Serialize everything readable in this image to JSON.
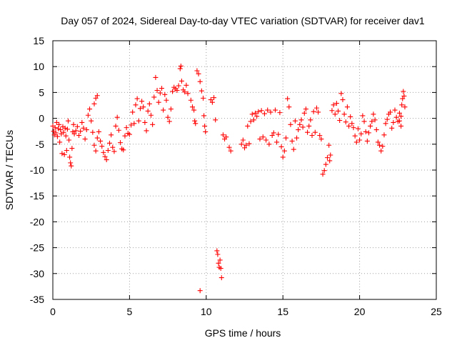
{
  "chart_data": {
    "type": "scatter",
    "title": "Day 057 of 2024, Sidereal Day-to-day VTEC variation (SDTVAR) for receiver dav1",
    "xlabel": "GPS time / hours",
    "ylabel": "SDTVAR / TECUs",
    "xlim": [
      0,
      25
    ],
    "ylim": [
      -35,
      15
    ],
    "xticks": [
      0,
      5,
      10,
      15,
      20,
      25
    ],
    "yticks": [
      15,
      10,
      5,
      0,
      -5,
      -10,
      -15,
      -20,
      -25,
      -30,
      -35
    ],
    "grid": true,
    "marker": "plus",
    "color": "#ff0000",
    "series": [
      {
        "name": "dav1",
        "points": [
          [
            0.0,
            -1.5
          ],
          [
            0.05,
            -2.5
          ],
          [
            0.1,
            -3.2
          ],
          [
            0.15,
            -1.8
          ],
          [
            0.2,
            -2.8
          ],
          [
            0.25,
            -0.8
          ],
          [
            0.3,
            -3.5
          ],
          [
            0.35,
            -2.0
          ],
          [
            0.4,
            -1.2
          ],
          [
            0.45,
            -4.6
          ],
          [
            0.5,
            -2.2
          ],
          [
            0.55,
            -3.0
          ],
          [
            0.6,
            -6.8
          ],
          [
            0.65,
            -1.6
          ],
          [
            0.7,
            -2.7
          ],
          [
            0.75,
            -7.0
          ],
          [
            0.8,
            -1.9
          ],
          [
            0.85,
            -3.4
          ],
          [
            0.9,
            -6.2
          ],
          [
            0.95,
            -2.1
          ],
          [
            1.0,
            -0.5
          ],
          [
            1.05,
            -4.2
          ],
          [
            1.1,
            -7.5
          ],
          [
            1.15,
            -8.6
          ],
          [
            1.2,
            -9.2
          ],
          [
            1.25,
            -5.8
          ],
          [
            1.3,
            -2.6
          ],
          [
            1.35,
            -1.2
          ],
          [
            1.4,
            -3.0
          ],
          [
            1.5,
            -2.4
          ],
          [
            1.6,
            -1.6
          ],
          [
            1.7,
            -3.3
          ],
          [
            1.8,
            -2.5
          ],
          [
            1.9,
            -0.8
          ],
          [
            2.0,
            -1.9
          ],
          [
            2.1,
            -4.0
          ],
          [
            2.2,
            -2.2
          ],
          [
            2.3,
            0.6
          ],
          [
            2.4,
            1.8
          ],
          [
            2.5,
            -0.5
          ],
          [
            2.6,
            -2.7
          ],
          [
            2.7,
            2.8
          ],
          [
            2.8,
            3.9
          ],
          [
            2.9,
            4.4
          ],
          [
            2.7,
            -5.2
          ],
          [
            2.8,
            -6.3
          ],
          [
            2.9,
            -3.8
          ],
          [
            3.0,
            -2.6
          ],
          [
            3.1,
            -4.4
          ],
          [
            3.2,
            -5.4
          ],
          [
            3.3,
            -6.6
          ],
          [
            3.4,
            -7.4
          ],
          [
            3.5,
            -8.0
          ],
          [
            3.6,
            -6.2
          ],
          [
            3.7,
            -4.8
          ],
          [
            3.8,
            -3.2
          ],
          [
            3.9,
            -5.6
          ],
          [
            4.0,
            -6.4
          ],
          [
            4.1,
            -1.5
          ],
          [
            4.2,
            0.2
          ],
          [
            4.3,
            -2.3
          ],
          [
            4.4,
            -4.7
          ],
          [
            4.5,
            -5.9
          ],
          [
            4.6,
            -6.1
          ],
          [
            4.7,
            -3.4
          ],
          [
            4.8,
            -1.8
          ],
          [
            4.9,
            -2.9
          ],
          [
            5.0,
            -3.1
          ],
          [
            5.1,
            -1.3
          ],
          [
            5.2,
            1.2
          ],
          [
            5.3,
            -1.0
          ],
          [
            5.4,
            2.6
          ],
          [
            5.5,
            3.8
          ],
          [
            5.6,
            -0.5
          ],
          [
            5.7,
            1.9
          ],
          [
            5.8,
            3.3
          ],
          [
            5.9,
            2.2
          ],
          [
            6.0,
            -0.8
          ],
          [
            6.1,
            -2.4
          ],
          [
            6.2,
            1.4
          ],
          [
            6.3,
            2.8
          ],
          [
            6.4,
            0.6
          ],
          [
            6.5,
            -1.2
          ],
          [
            6.6,
            4.1
          ],
          [
            6.7,
            7.9
          ],
          [
            6.8,
            5.4
          ],
          [
            6.9,
            3.1
          ],
          [
            7.0,
            4.9
          ],
          [
            7.1,
            5.8
          ],
          [
            7.2,
            1.6
          ],
          [
            7.3,
            4.6
          ],
          [
            7.4,
            3.5
          ],
          [
            7.5,
            0.2
          ],
          [
            7.6,
            -0.6
          ],
          [
            7.7,
            1.8
          ],
          [
            7.8,
            5.2
          ],
          [
            7.9,
            6.0
          ],
          [
            8.0,
            5.7
          ],
          [
            8.1,
            5.4
          ],
          [
            8.2,
            6.3
          ],
          [
            8.3,
            9.6
          ],
          [
            8.35,
            10.1
          ],
          [
            8.4,
            7.2
          ],
          [
            8.5,
            5.5
          ],
          [
            8.6,
            5.1
          ],
          [
            8.7,
            6.4
          ],
          [
            8.8,
            4.8
          ],
          [
            9.0,
            3.5
          ],
          [
            9.1,
            2.2
          ],
          [
            9.2,
            1.6
          ],
          [
            9.25,
            -0.5
          ],
          [
            9.3,
            -1.0
          ],
          [
            9.4,
            9.2
          ],
          [
            9.5,
            8.6
          ],
          [
            9.6,
            7.1
          ],
          [
            9.7,
            5.3
          ],
          [
            9.8,
            3.9
          ],
          [
            9.85,
            0.5
          ],
          [
            9.9,
            -1.5
          ],
          [
            9.95,
            -2.6
          ],
          [
            9.6,
            -33.3
          ],
          [
            10.3,
            3.6
          ],
          [
            10.4,
            3.1
          ],
          [
            10.5,
            4.0
          ],
          [
            10.6,
            -0.3
          ],
          [
            10.7,
            -25.6
          ],
          [
            10.75,
            -26.3
          ],
          [
            10.8,
            -28.0
          ],
          [
            10.85,
            -28.8
          ],
          [
            10.9,
            -27.4
          ],
          [
            10.95,
            -29.0
          ],
          [
            11.0,
            -30.8
          ],
          [
            11.1,
            -3.2
          ],
          [
            11.2,
            -4.0
          ],
          [
            11.3,
            -3.6
          ],
          [
            11.5,
            -5.6
          ],
          [
            11.6,
            -6.3
          ],
          [
            12.3,
            -5.0
          ],
          [
            12.4,
            -4.2
          ],
          [
            12.5,
            -5.7
          ],
          [
            12.6,
            -5.2
          ],
          [
            12.7,
            -1.5
          ],
          [
            12.8,
            -4.9
          ],
          [
            12.9,
            -0.6
          ],
          [
            13.0,
            0.8
          ],
          [
            13.1,
            -0.3
          ],
          [
            13.2,
            1.0
          ],
          [
            13.3,
            0.4
          ],
          [
            13.4,
            1.3
          ],
          [
            13.5,
            -4.0
          ],
          [
            13.6,
            1.5
          ],
          [
            13.7,
            -3.6
          ],
          [
            13.8,
            0.9
          ],
          [
            13.9,
            -4.2
          ],
          [
            14.0,
            1.6
          ],
          [
            14.1,
            -5.0
          ],
          [
            14.2,
            1.2
          ],
          [
            14.3,
            -3.3
          ],
          [
            14.4,
            -2.8
          ],
          [
            14.5,
            1.6
          ],
          [
            14.6,
            -4.6
          ],
          [
            14.7,
            -3.1
          ],
          [
            14.8,
            1.1
          ],
          [
            14.9,
            -5.5
          ],
          [
            15.0,
            -7.5
          ],
          [
            15.1,
            -6.3
          ],
          [
            15.2,
            -3.8
          ],
          [
            15.3,
            3.8
          ],
          [
            15.4,
            2.2
          ],
          [
            15.5,
            -1.2
          ],
          [
            15.6,
            -4.4
          ],
          [
            15.7,
            -6.0
          ],
          [
            15.8,
            -0.5
          ],
          [
            15.9,
            -3.8
          ],
          [
            16.0,
            -2.2
          ],
          [
            16.1,
            -1.2
          ],
          [
            16.2,
            -0.3
          ],
          [
            16.3,
            -1.7
          ],
          [
            16.4,
            1.0
          ],
          [
            16.5,
            1.8
          ],
          [
            16.6,
            -2.7
          ],
          [
            16.7,
            -1.5
          ],
          [
            16.8,
            -0.3
          ],
          [
            16.9,
            -3.3
          ],
          [
            17.0,
            1.3
          ],
          [
            17.1,
            -2.7
          ],
          [
            17.2,
            2.0
          ],
          [
            17.3,
            1.2
          ],
          [
            17.4,
            -3.3
          ],
          [
            17.5,
            -4.0
          ],
          [
            17.6,
            -10.8
          ],
          [
            17.7,
            -10.1
          ],
          [
            17.8,
            -8.9
          ],
          [
            17.9,
            -7.6
          ],
          [
            18.0,
            -5.2
          ],
          [
            18.05,
            -8.2
          ],
          [
            18.1,
            -7.1
          ],
          [
            18.2,
            1.5
          ],
          [
            18.3,
            2.6
          ],
          [
            18.4,
            0.8
          ],
          [
            18.5,
            2.9
          ],
          [
            18.6,
            1.4
          ],
          [
            18.7,
            -0.4
          ],
          [
            18.8,
            4.8
          ],
          [
            18.9,
            3.6
          ],
          [
            19.0,
            0.8
          ],
          [
            19.1,
            -0.7
          ],
          [
            19.2,
            2.2
          ],
          [
            19.3,
            -1.5
          ],
          [
            19.4,
            0.3
          ],
          [
            19.5,
            -1.0
          ],
          [
            19.6,
            -1.8
          ],
          [
            19.7,
            -3.4
          ],
          [
            19.8,
            -4.6
          ],
          [
            19.9,
            -2.0
          ],
          [
            20.0,
            -4.2
          ],
          [
            20.1,
            -3.0
          ],
          [
            20.2,
            0.5
          ],
          [
            20.3,
            -0.6
          ],
          [
            20.4,
            -2.6
          ],
          [
            20.5,
            -4.4
          ],
          [
            20.6,
            -2.8
          ],
          [
            20.7,
            -1.5
          ],
          [
            20.8,
            -0.6
          ],
          [
            20.9,
            0.8
          ],
          [
            21.0,
            -0.3
          ],
          [
            21.1,
            -2.2
          ],
          [
            21.2,
            -4.6
          ],
          [
            21.3,
            -5.2
          ],
          [
            21.4,
            -6.3
          ],
          [
            21.5,
            -5.4
          ],
          [
            21.6,
            -3.2
          ],
          [
            21.7,
            -1.0
          ],
          [
            21.8,
            -0.2
          ],
          [
            21.9,
            0.8
          ],
          [
            22.0,
            1.2
          ],
          [
            22.1,
            -1.9
          ],
          [
            22.2,
            -0.8
          ],
          [
            22.3,
            1.6
          ],
          [
            22.4,
            0.2
          ],
          [
            22.5,
            -0.6
          ],
          [
            22.6,
            1.0
          ],
          [
            22.7,
            0.4
          ],
          [
            22.75,
            2.6
          ],
          [
            22.8,
            3.8
          ],
          [
            22.85,
            5.2
          ],
          [
            22.9,
            4.3
          ],
          [
            22.95,
            2.2
          ],
          [
            22.6,
            -0.5
          ],
          [
            22.7,
            -1.5
          ]
        ]
      }
    ]
  }
}
